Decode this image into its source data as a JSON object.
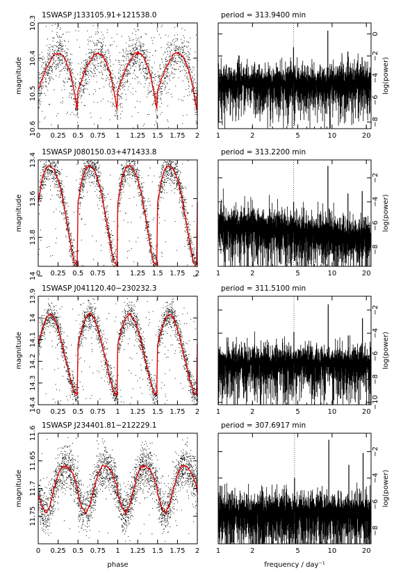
{
  "chart_data": [
    {
      "type": "scatter",
      "panel": "light-curve",
      "name": "1SWASP J133105.91+121538.0",
      "xlabel": "",
      "ylabel": "magnitude",
      "xlim": [
        0,
        2
      ],
      "ylim": [
        10.6,
        10.3
      ],
      "yticks": [
        10.3,
        10.4,
        10.5,
        10.6
      ],
      "xticks": [
        0,
        0.25,
        0.5,
        0.75,
        1,
        1.25,
        1.5,
        1.75,
        2
      ],
      "xtick_labels": [
        "0",
        "0.25",
        "0.5",
        "0.75",
        "1",
        "1.25",
        "1.5",
        "1.75",
        "2"
      ],
      "series": [
        {
          "name": "",
          "kind": "binned-mean",
          "color": "#dd0000",
          "x": [
            0,
            0.05,
            0.1,
            0.15,
            0.2,
            0.25,
            0.3,
            0.35,
            0.4,
            0.45,
            0.5
          ],
          "y": [
            10.49,
            10.46,
            10.43,
            10.41,
            10.39,
            10.385,
            10.39,
            10.41,
            10.44,
            10.49,
            10.56
          ]
        },
        {
          "name": "",
          "kind": "points",
          "color": "#000000",
          "n": 2200,
          "scatter": 0.03,
          "outliers": 0.12
        }
      ]
    },
    {
      "type": "line",
      "panel": "periodogram",
      "title": "period = 313.9400 min",
      "xlabel": "",
      "ylabel": "log(power)",
      "xlim": [
        1,
        22
      ],
      "xscale": "log",
      "xticks": [
        1,
        2,
        5,
        10,
        20
      ],
      "ylim": [
        -8.6,
        1
      ],
      "yticks": [
        0,
        -2,
        -4,
        -6,
        -8
      ],
      "dotted_line_x": 4.587,
      "noise_level": -4.4,
      "peaks": [
        {
          "x": 4.587,
          "y": -1.2
        },
        {
          "x": 9.174,
          "y": 0.3
        },
        {
          "x": 13.76,
          "y": -1.6
        },
        {
          "x": 18.35,
          "y": -2.1
        }
      ]
    },
    {
      "type": "scatter",
      "panel": "light-curve",
      "name": "1SWASP J080150.03+471433.8",
      "xlabel": "",
      "ylabel": "magnitude",
      "xlim": [
        0,
        2
      ],
      "ylim": [
        13.95,
        13.4
      ],
      "yticks": [
        13.4,
        13.6,
        13.8,
        14
      ],
      "xticks": [
        0,
        0.25,
        0.5,
        0.75,
        1,
        1.25,
        1.5,
        1.75,
        2
      ],
      "xtick_labels": [
        "0",
        "0.25",
        "0.5",
        "0.75",
        "1",
        "1.25",
        "1.5",
        "1.75",
        "2"
      ],
      "series": [
        {
          "name": "",
          "kind": "binned-mean",
          "color": "#dd0000",
          "x": [
            0,
            0.05,
            0.1,
            0.15,
            0.2,
            0.25,
            0.3,
            0.35,
            0.4,
            0.45,
            0.5
          ],
          "y": [
            13.62,
            13.5,
            13.44,
            13.43,
            13.45,
            13.5,
            13.58,
            13.7,
            13.82,
            13.93,
            13.95
          ]
        },
        {
          "name": "",
          "kind": "points",
          "color": "#000000",
          "n": 2600,
          "scatter": 0.04,
          "outliers": 0.05
        }
      ]
    },
    {
      "type": "line",
      "panel": "periodogram",
      "title": "period = 313.2200 min",
      "xlabel": "",
      "ylabel": "log(power)",
      "xlim": [
        1,
        22
      ],
      "xscale": "log",
      "xticks": [
        1,
        2,
        5,
        10,
        20
      ],
      "ylim": [
        -9.4,
        -0.5
      ],
      "yticks": [
        -2,
        -4,
        -6,
        -8
      ],
      "dotted_line_x": 4.597,
      "noise_level": -6.6,
      "peaks": [
        {
          "x": 4.597,
          "y": -4.0
        },
        {
          "x": 9.194,
          "y": -1.0
        },
        {
          "x": 13.79,
          "y": -3.3
        },
        {
          "x": 18.39,
          "y": -3.1
        }
      ]
    },
    {
      "type": "scatter",
      "panel": "light-curve",
      "name": "1SWASP J041120.40−230232.3",
      "xlabel": "",
      "ylabel": "magnitude",
      "xlim": [
        0,
        2
      ],
      "ylim": [
        14.4,
        13.9
      ],
      "yticks": [
        13.9,
        14,
        14.1,
        14.2,
        14.3,
        14.4
      ],
      "xticks": [
        0,
        0.25,
        0.5,
        0.75,
        1,
        1.25,
        1.5,
        1.75,
        2
      ],
      "xtick_labels": [
        "0",
        "0.25",
        "0.5",
        "0.75",
        "1",
        "1.25",
        "1.5",
        "1.75",
        "2"
      ],
      "series": [
        {
          "name": "",
          "kind": "binned-mean",
          "color": "#dd0000",
          "x": [
            0,
            0.05,
            0.1,
            0.15,
            0.2,
            0.25,
            0.3,
            0.35,
            0.4,
            0.45,
            0.5
          ],
          "y": [
            14.12,
            14.05,
            14.0,
            13.98,
            14.0,
            14.05,
            14.12,
            14.2,
            14.28,
            14.34,
            14.36
          ]
        },
        {
          "name": "",
          "kind": "points",
          "color": "#000000",
          "n": 2600,
          "scatter": 0.03,
          "outliers": 0.08
        }
      ]
    },
    {
      "type": "line",
      "panel": "periodogram",
      "title": "period = 311.5100 min",
      "xlabel": "",
      "ylabel": "log(power)",
      "xlim": [
        1,
        22
      ],
      "xscale": "log",
      "xticks": [
        1,
        2,
        5,
        10,
        20
      ],
      "ylim": [
        -10.2,
        -0.8
      ],
      "yticks": [
        -2,
        -4,
        -6,
        -8,
        -10
      ],
      "dotted_line_x": 4.622,
      "noise_level": -6.6,
      "peaks": [
        {
          "x": 4.622,
          "y": -3.9
        },
        {
          "x": 9.244,
          "y": -1.5
        },
        {
          "x": 13.87,
          "y": -4.2
        },
        {
          "x": 18.49,
          "y": -2.7
        }
      ]
    },
    {
      "type": "scatter",
      "panel": "light-curve",
      "name": "1SWASP J234401.81−212229.1",
      "xlabel": "phase",
      "ylabel": "magnitude",
      "xlim": [
        0,
        2
      ],
      "ylim": [
        11.8,
        11.6
      ],
      "yticks": [
        11.6,
        11.65,
        11.7,
        11.75
      ],
      "xticks": [
        0,
        0.25,
        0.5,
        0.75,
        1,
        1.25,
        1.5,
        1.75,
        2
      ],
      "xtick_labels": [
        "0",
        "0.25",
        "0.5",
        "0.75",
        "1",
        "1.25",
        "1.5",
        "1.75",
        "2"
      ],
      "series": [
        {
          "name": "",
          "kind": "binned-mean",
          "color": "#dd0000",
          "x": [
            0,
            0.05,
            0.1,
            0.15,
            0.2,
            0.25,
            0.3,
            0.35,
            0.4,
            0.45,
            0.5
          ],
          "y": [
            11.71,
            11.735,
            11.745,
            11.73,
            11.7,
            11.675,
            11.66,
            11.66,
            11.665,
            11.68,
            11.7
          ]
        },
        {
          "name": "",
          "kind": "points",
          "color": "#000000",
          "n": 3200,
          "scatter": 0.02,
          "outliers": 0.02
        }
      ]
    },
    {
      "type": "line",
      "panel": "periodogram",
      "title": "period = 307.6917 min",
      "xlabel": "frequency / day⁻¹",
      "ylabel": "log(power)",
      "xlim": [
        1,
        22
      ],
      "xscale": "log",
      "xticks": [
        1,
        2,
        5,
        10,
        20
      ],
      "ylim": [
        -9.0,
        -0.6
      ],
      "yticks": [
        -2,
        -4,
        -6,
        -8
      ],
      "dotted_line_x": 4.68,
      "noise_level": -6.6,
      "peaks": [
        {
          "x": 4.68,
          "y": -4.0
        },
        {
          "x": 9.36,
          "y": -1.1
        },
        {
          "x": 14.04,
          "y": -3.0
        },
        {
          "x": 18.72,
          "y": -2.1
        }
      ]
    }
  ]
}
